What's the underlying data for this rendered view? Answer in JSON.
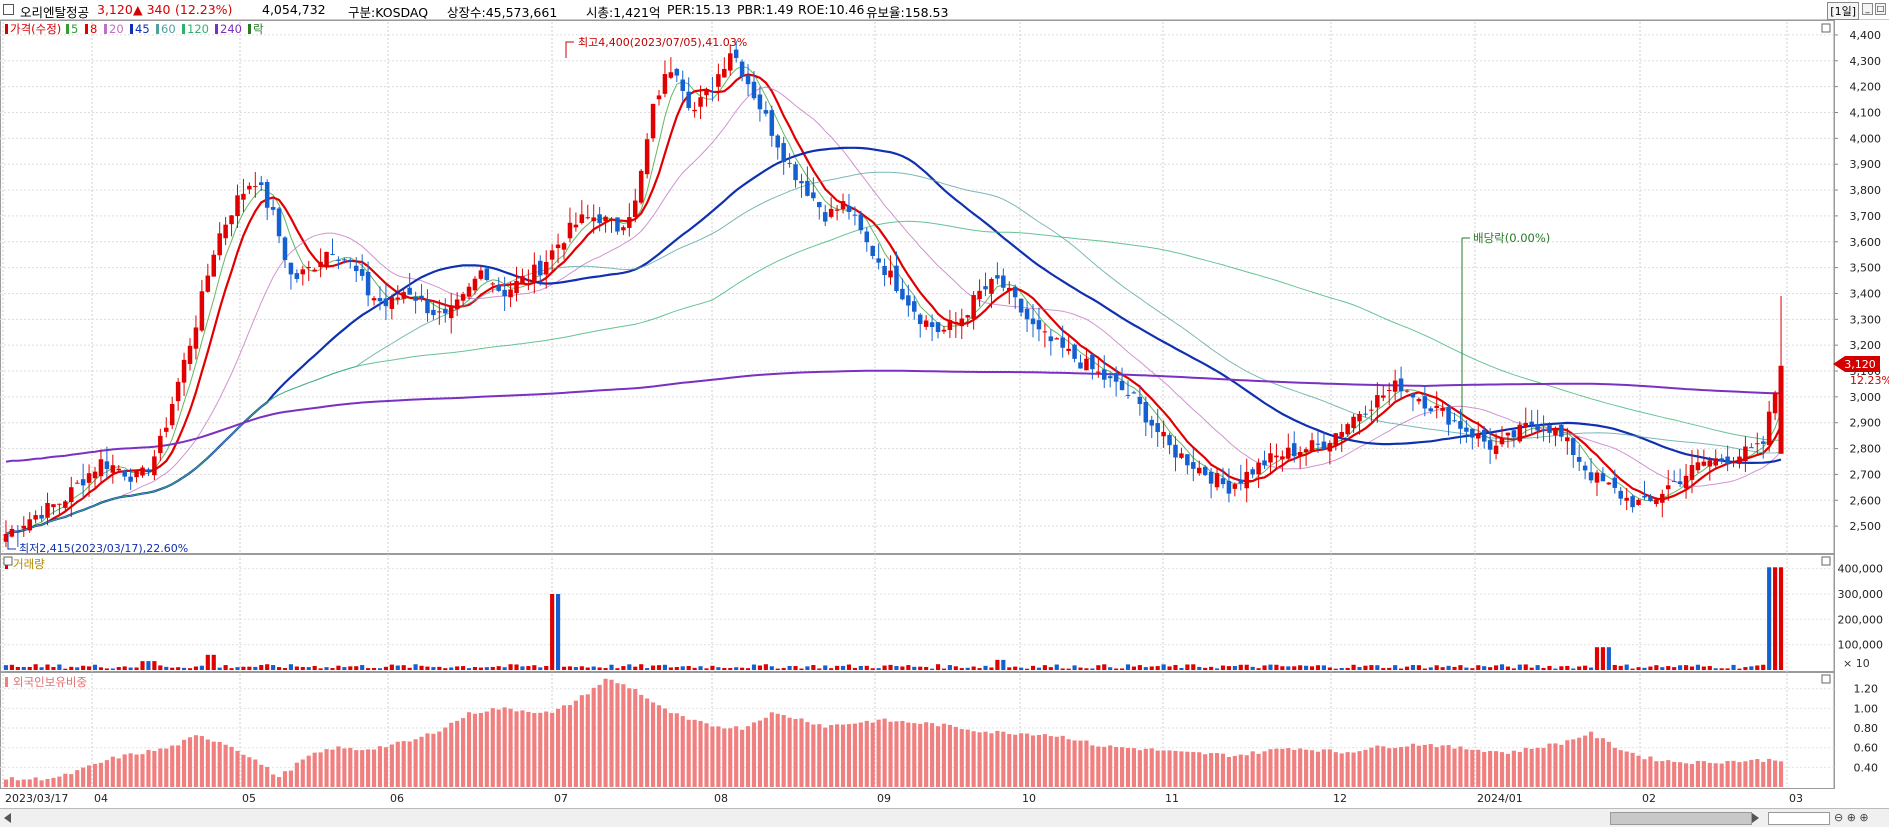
{
  "header": {
    "name": "오리엔탈정공",
    "price": "3,120",
    "change": "▲ 340",
    "change_pct": "(12.23%)",
    "volume": "4,054,732",
    "market": "구분:KOSDAQ",
    "shares": "상장수:45,573,661",
    "mcap": "시총:1,421억",
    "per": "PER:15.13",
    "pbr": "PBR:1.49",
    "roe": "ROE:10.46",
    "reserve": "유보율:158.53",
    "period_button": "[1일]"
  },
  "price_panel": {
    "legend": [
      {
        "label": "가격(수정)",
        "color": "#d40000"
      },
      {
        "label": "5",
        "color": "#2ea02e"
      },
      {
        "label": "8",
        "color": "#e00000"
      },
      {
        "label": "20",
        "color": "#c070c0"
      },
      {
        "label": "45",
        "color": "#1030b0"
      },
      {
        "label": "60",
        "color": "#50a0a0"
      },
      {
        "label": "120",
        "color": "#30b070"
      },
      {
        "label": "240",
        "color": "#7a30c0"
      },
      {
        "label": "락",
        "color": "#2a7a2a"
      }
    ],
    "annotations": {
      "high": "최고4,400(2023/07/05),41.03%",
      "low": "최저2,415(2023/03/17),22.60%",
      "dividend": "배당락(0.00%)"
    },
    "current_tag": "3,120",
    "current_pct": "12.23%"
  },
  "volume_panel": {
    "title": "거래량",
    "unit_note": "× 10"
  },
  "foreign_panel": {
    "title": "외국인보유비중"
  },
  "chart_data": [
    {
      "type": "candlestick",
      "title": "오리엔탈정공",
      "ylim": [
        2400,
        4450
      ],
      "y_ticks": [
        2500,
        2600,
        2700,
        2800,
        2900,
        3000,
        3100,
        3200,
        3300,
        3400,
        3500,
        3600,
        3700,
        3800,
        3900,
        4000,
        4100,
        4200,
        4300,
        4400
      ],
      "x_tick_labels": [
        "2023/03/17",
        "04",
        "05",
        "06",
        "07",
        "08",
        "09",
        "10",
        "11",
        "12",
        "2024/01",
        "02",
        "03"
      ],
      "close_path": [
        2470,
        2520,
        2560,
        2600,
        2680,
        2750,
        2720,
        2680,
        2800,
        3050,
        3300,
        3600,
        3750,
        3850,
        3700,
        3450,
        3500,
        3580,
        3520,
        3400,
        3350,
        3420,
        3350,
        3300,
        3380,
        3500,
        3400,
        3450,
        3500,
        3600,
        3680,
        3700,
        3650,
        3750,
        4150,
        4300,
        4100,
        4200,
        4350,
        4200,
        4050,
        3900,
        3800,
        3700,
        3750,
        3600,
        3500,
        3400,
        3300,
        3250,
        3300,
        3400,
        3450,
        3350,
        3250,
        3200,
        3150,
        3100,
        3050,
        3000,
        2900,
        2800,
        2750,
        2700,
        2650,
        2700,
        2750,
        2780,
        2800,
        2820,
        2880,
        2950,
        3000,
        3050,
        3000,
        2950,
        2900,
        2850,
        2800,
        2850,
        2900,
        2880,
        2800,
        2700,
        2650,
        2600,
        2580,
        2650,
        2700,
        2750,
        2760,
        2780,
        2800,
        3120
      ],
      "high": {
        "value": 4400,
        "date": "2023/07/05",
        "pct": 41.03
      },
      "low": {
        "value": 2415,
        "date": "2023/03/17",
        "pct": 22.6
      },
      "last_close": 3120,
      "moving_averages": [
        {
          "name": "5",
          "color": "#2ea02e"
        },
        {
          "name": "8",
          "color": "#e00000"
        },
        {
          "name": "20",
          "color": "#c070c0"
        },
        {
          "name": "45",
          "color": "#1030b0"
        },
        {
          "name": "60",
          "color": "#50a0a0"
        },
        {
          "name": "120",
          "color": "#30b070"
        },
        {
          "name": "240",
          "color": "#7a30c0"
        }
      ]
    },
    {
      "type": "bar",
      "title": "거래량",
      "ylim": [
        0,
        450000
      ],
      "y_ticks": [
        100000,
        200000,
        300000,
        400000
      ],
      "y_tick_labels": [
        "100,000",
        "200,000",
        "300,000",
        "400,000"
      ],
      "bars": [
        {
          "x_frac": 0.01,
          "value": 12000
        },
        {
          "x_frac": 0.08,
          "value": 35000
        },
        {
          "x_frac": 0.115,
          "value": 60000
        },
        {
          "x_frac": 0.31,
          "value": 300000
        },
        {
          "x_frac": 0.56,
          "value": 40000
        },
        {
          "x_frac": 0.9,
          "value": 90000
        },
        {
          "x_frac": 0.997,
          "value": 405473
        }
      ]
    },
    {
      "type": "bar",
      "title": "외국인보유비중",
      "ylim": [
        0.2,
        1.35
      ],
      "y_ticks": [
        0.4,
        0.6,
        0.8,
        1.0,
        1.2
      ],
      "y_tick_labels": [
        "0.40",
        "0.60",
        "0.80",
        "1.00",
        "1.20"
      ],
      "values_path": [
        0.28,
        0.28,
        0.3,
        0.4,
        0.5,
        0.55,
        0.6,
        0.72,
        0.65,
        0.5,
        0.3,
        0.5,
        0.6,
        0.58,
        0.62,
        0.68,
        0.8,
        0.95,
        1.0,
        0.98,
        0.95,
        1.1,
        1.3,
        1.2,
        1.0,
        0.88,
        0.82,
        0.8,
        0.95,
        0.9,
        0.82,
        0.85,
        0.88,
        0.86,
        0.84,
        0.8,
        0.76,
        0.75,
        0.74,
        0.7,
        0.62,
        0.6,
        0.58,
        0.55,
        0.54,
        0.52,
        0.56,
        0.6,
        0.58,
        0.55,
        0.6,
        0.62,
        0.64,
        0.6,
        0.58,
        0.55,
        0.6,
        0.65,
        0.75,
        0.6,
        0.5,
        0.46,
        0.45,
        0.46,
        0.47,
        0.48
      ]
    }
  ]
}
